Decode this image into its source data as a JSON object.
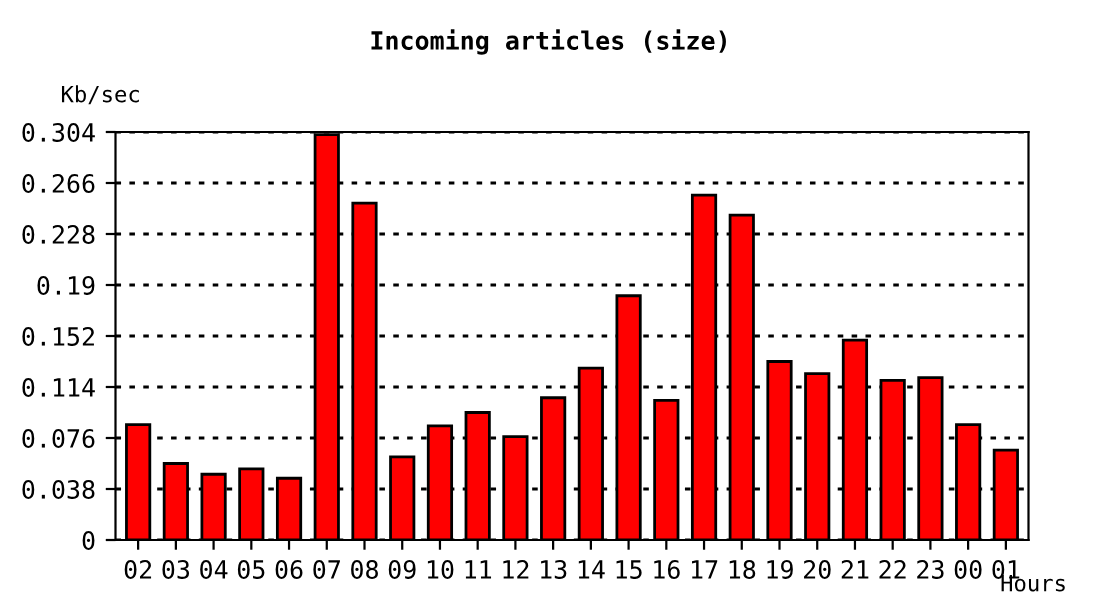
{
  "chart_data": {
    "type": "bar",
    "title": "Incoming articles (size)",
    "ylabel": "Kb/sec",
    "xlabel": "Hours",
    "categories": [
      "02",
      "03",
      "04",
      "05",
      "06",
      "07",
      "08",
      "09",
      "10",
      "11",
      "12",
      "13",
      "14",
      "15",
      "16",
      "17",
      "18",
      "19",
      "20",
      "21",
      "22",
      "23",
      "00",
      "01"
    ],
    "values": [
      0.086,
      0.057,
      0.049,
      0.053,
      0.046,
      0.302,
      0.251,
      0.062,
      0.085,
      0.095,
      0.077,
      0.106,
      0.128,
      0.182,
      0.104,
      0.257,
      0.242,
      0.133,
      0.124,
      0.149,
      0.119,
      0.121,
      0.086,
      0.067
    ],
    "color": "#ff0000",
    "ylim": [
      0,
      0.304
    ],
    "yticks": [
      0,
      0.038,
      0.076,
      0.114,
      0.152,
      0.19,
      0.228,
      0.266,
      0.304
    ],
    "grid": "y",
    "line_style": "dotted"
  }
}
